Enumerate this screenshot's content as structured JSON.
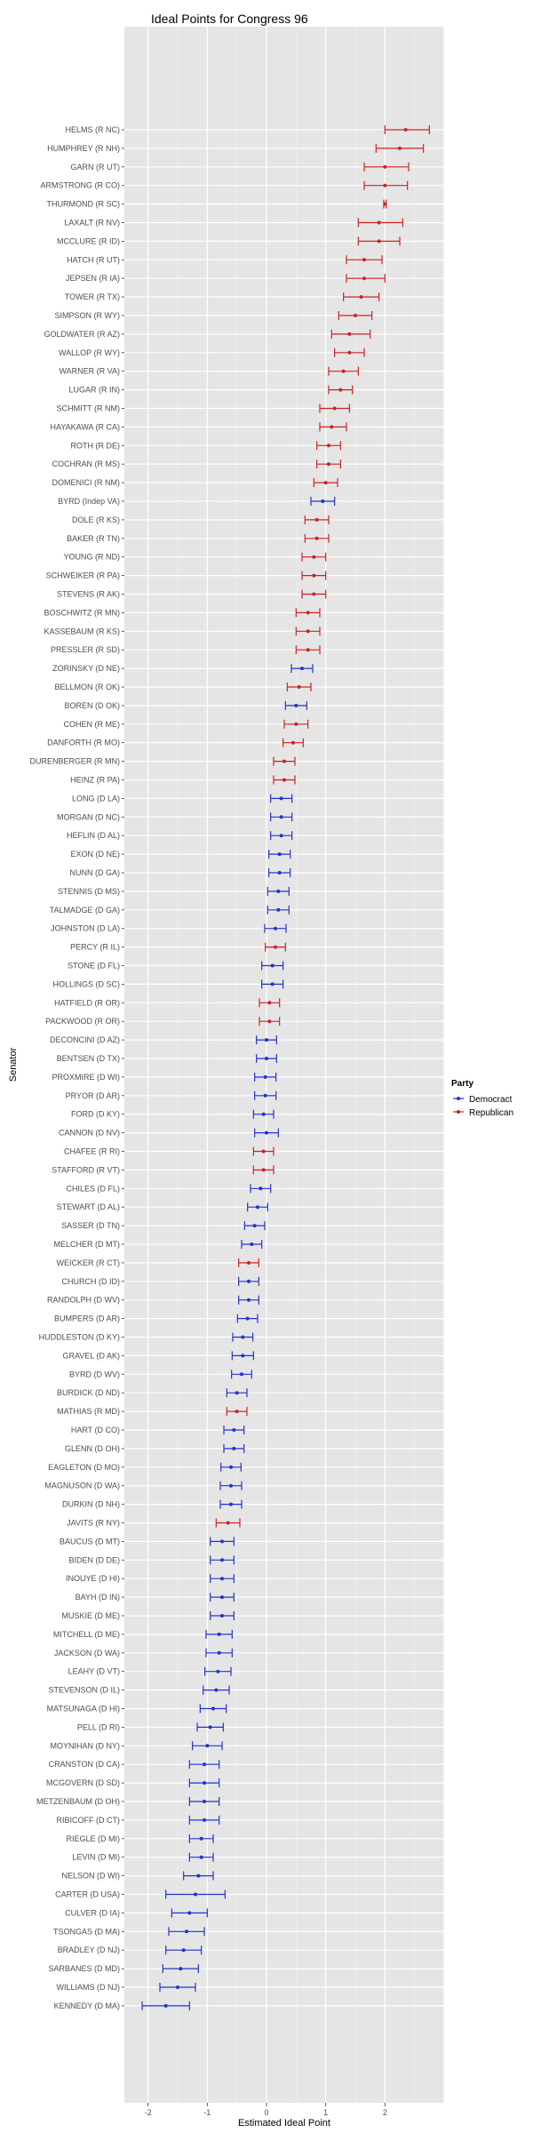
{
  "chart_data": {
    "type": "scatter",
    "title": "Ideal Points for Congress 96",
    "xlabel": "Estimated Ideal Point",
    "ylabel": "Senator",
    "xlim": [
      -2.4,
      3.0
    ],
    "x_ticks": [
      -2,
      -1,
      0,
      1,
      2
    ],
    "x_tick_labels": [
      "-2",
      "-1",
      "0",
      "1",
      "2"
    ],
    "grid": true,
    "legend": {
      "title": "Party",
      "position": "right",
      "entries": [
        {
          "label": "Democract",
          "color": "#2233cc"
        },
        {
          "label": "Republican",
          "color": "#cc2222"
        }
      ]
    },
    "colors": {
      "D": "#2233cc",
      "R": "#cc2222",
      "Indep": "#2233cc",
      "panel": "#e5e5e5",
      "grid": "#ffffff"
    },
    "points": [
      {
        "label": "HELMS (R NC)",
        "party": "R",
        "value": 2.35,
        "low": 2.0,
        "high": 2.75
      },
      {
        "label": "HUMPHREY (R NH)",
        "party": "R",
        "value": 2.25,
        "low": 1.85,
        "high": 2.65
      },
      {
        "label": "GARN (R UT)",
        "party": "R",
        "value": 2.0,
        "low": 1.65,
        "high": 2.4
      },
      {
        "label": "ARMSTRONG (R CO)",
        "party": "R",
        "value": 2.0,
        "low": 1.65,
        "high": 2.38
      },
      {
        "label": "THURMOND (R SC)",
        "party": "R",
        "value": 2.0,
        "low": 1.98,
        "high": 2.02
      },
      {
        "label": "LAXALT (R NV)",
        "party": "R",
        "value": 1.9,
        "low": 1.55,
        "high": 2.3
      },
      {
        "label": "MCCLURE (R ID)",
        "party": "R",
        "value": 1.9,
        "low": 1.55,
        "high": 2.25
      },
      {
        "label": "HATCH (R UT)",
        "party": "R",
        "value": 1.65,
        "low": 1.35,
        "high": 1.95
      },
      {
        "label": "JEPSEN (R IA)",
        "party": "R",
        "value": 1.65,
        "low": 1.35,
        "high": 2.0
      },
      {
        "label": "TOWER (R TX)",
        "party": "R",
        "value": 1.6,
        "low": 1.3,
        "high": 1.9
      },
      {
        "label": "SIMPSON (R WY)",
        "party": "R",
        "value": 1.5,
        "low": 1.22,
        "high": 1.78
      },
      {
        "label": "GOLDWATER (R AZ)",
        "party": "R",
        "value": 1.4,
        "low": 1.1,
        "high": 1.75
      },
      {
        "label": "WALLOP (R WY)",
        "party": "R",
        "value": 1.4,
        "low": 1.15,
        "high": 1.65
      },
      {
        "label": "WARNER (R VA)",
        "party": "R",
        "value": 1.3,
        "low": 1.05,
        "high": 1.55
      },
      {
        "label": "LUGAR (R IN)",
        "party": "R",
        "value": 1.25,
        "low": 1.05,
        "high": 1.45
      },
      {
        "label": "SCHMITT (R NM)",
        "party": "R",
        "value": 1.15,
        "low": 0.9,
        "high": 1.4
      },
      {
        "label": "HAYAKAWA (R CA)",
        "party": "R",
        "value": 1.1,
        "low": 0.9,
        "high": 1.35
      },
      {
        "label": "ROTH (R DE)",
        "party": "R",
        "value": 1.05,
        "low": 0.85,
        "high": 1.25
      },
      {
        "label": "COCHRAN (R MS)",
        "party": "R",
        "value": 1.05,
        "low": 0.85,
        "high": 1.25
      },
      {
        "label": "DOMENICI (R NM)",
        "party": "R",
        "value": 1.0,
        "low": 0.8,
        "high": 1.2
      },
      {
        "label": "BYRD (Indep VA)",
        "party": "Indep",
        "value": 0.95,
        "low": 0.75,
        "high": 1.15
      },
      {
        "label": "DOLE (R KS)",
        "party": "R",
        "value": 0.85,
        "low": 0.65,
        "high": 1.05
      },
      {
        "label": "BAKER (R TN)",
        "party": "R",
        "value": 0.85,
        "low": 0.65,
        "high": 1.05
      },
      {
        "label": "YOUNG (R ND)",
        "party": "R",
        "value": 0.8,
        "low": 0.6,
        "high": 1.0
      },
      {
        "label": "SCHWEIKER (R PA)",
        "party": "R",
        "value": 0.8,
        "low": 0.6,
        "high": 1.0
      },
      {
        "label": "STEVENS (R AK)",
        "party": "R",
        "value": 0.8,
        "low": 0.6,
        "high": 1.0
      },
      {
        "label": "BOSCHWITZ (R MN)",
        "party": "R",
        "value": 0.7,
        "low": 0.5,
        "high": 0.9
      },
      {
        "label": "KASSEBAUM (R KS)",
        "party": "R",
        "value": 0.7,
        "low": 0.5,
        "high": 0.9
      },
      {
        "label": "PRESSLER (R SD)",
        "party": "R",
        "value": 0.7,
        "low": 0.5,
        "high": 0.9
      },
      {
        "label": "ZORINSKY (D NE)",
        "party": "D",
        "value": 0.6,
        "low": 0.42,
        "high": 0.78
      },
      {
        "label": "BELLMON (R OK)",
        "party": "R",
        "value": 0.55,
        "low": 0.35,
        "high": 0.75
      },
      {
        "label": "BOREN (D OK)",
        "party": "D",
        "value": 0.5,
        "low": 0.32,
        "high": 0.68
      },
      {
        "label": "COHEN (R ME)",
        "party": "R",
        "value": 0.5,
        "low": 0.3,
        "high": 0.7
      },
      {
        "label": "DANFORTH (R MO)",
        "party": "R",
        "value": 0.45,
        "low": 0.28,
        "high": 0.62
      },
      {
        "label": "DURENBERGER (R MN)",
        "party": "R",
        "value": 0.3,
        "low": 0.12,
        "high": 0.48
      },
      {
        "label": "HEINZ (R PA)",
        "party": "R",
        "value": 0.3,
        "low": 0.12,
        "high": 0.48
      },
      {
        "label": "LONG (D LA)",
        "party": "D",
        "value": 0.25,
        "low": 0.07,
        "high": 0.43
      },
      {
        "label": "MORGAN (D NC)",
        "party": "D",
        "value": 0.25,
        "low": 0.07,
        "high": 0.43
      },
      {
        "label": "HEFLIN (D AL)",
        "party": "D",
        "value": 0.25,
        "low": 0.07,
        "high": 0.43
      },
      {
        "label": "EXON (D NE)",
        "party": "D",
        "value": 0.22,
        "low": 0.04,
        "high": 0.4
      },
      {
        "label": "NUNN (D GA)",
        "party": "D",
        "value": 0.22,
        "low": 0.04,
        "high": 0.4
      },
      {
        "label": "STENNIS (D MS)",
        "party": "D",
        "value": 0.2,
        "low": 0.02,
        "high": 0.38
      },
      {
        "label": "TALMADGE (D GA)",
        "party": "D",
        "value": 0.2,
        "low": 0.02,
        "high": 0.38
      },
      {
        "label": "JOHNSTON (D LA)",
        "party": "D",
        "value": 0.15,
        "low": -0.03,
        "high": 0.33
      },
      {
        "label": "PERCY (R IL)",
        "party": "R",
        "value": 0.15,
        "low": -0.02,
        "high": 0.32
      },
      {
        "label": "STONE (D FL)",
        "party": "D",
        "value": 0.1,
        "low": -0.08,
        "high": 0.28
      },
      {
        "label": "HOLLINGS (D SC)",
        "party": "D",
        "value": 0.1,
        "low": -0.08,
        "high": 0.28
      },
      {
        "label": "HATFIELD (R OR)",
        "party": "R",
        "value": 0.05,
        "low": -0.12,
        "high": 0.22
      },
      {
        "label": "PACKWOOD (R OR)",
        "party": "R",
        "value": 0.05,
        "low": -0.12,
        "high": 0.22
      },
      {
        "label": "DECONCINI (D AZ)",
        "party": "D",
        "value": 0.0,
        "low": -0.17,
        "high": 0.17
      },
      {
        "label": "BENTSEN (D TX)",
        "party": "D",
        "value": 0.0,
        "low": -0.17,
        "high": 0.17
      },
      {
        "label": "PROXMIRE (D WI)",
        "party": "D",
        "value": -0.02,
        "low": -0.2,
        "high": 0.16
      },
      {
        "label": "PRYOR (D AR)",
        "party": "D",
        "value": -0.02,
        "low": -0.2,
        "high": 0.16
      },
      {
        "label": "FORD (D KY)",
        "party": "D",
        "value": -0.05,
        "low": -0.22,
        "high": 0.12
      },
      {
        "label": "CANNON (D NV)",
        "party": "D",
        "value": 0.0,
        "low": -0.2,
        "high": 0.2
      },
      {
        "label": "CHAFEE (R RI)",
        "party": "R",
        "value": -0.05,
        "low": -0.22,
        "high": 0.12
      },
      {
        "label": "STAFFORD (R VT)",
        "party": "R",
        "value": -0.05,
        "low": -0.22,
        "high": 0.12
      },
      {
        "label": "CHILES (D FL)",
        "party": "D",
        "value": -0.1,
        "low": -0.27,
        "high": 0.07
      },
      {
        "label": "STEWART (D AL)",
        "party": "D",
        "value": -0.15,
        "low": -0.32,
        "high": 0.02
      },
      {
        "label": "SASSER (D TN)",
        "party": "D",
        "value": -0.2,
        "low": -0.37,
        "high": -0.03
      },
      {
        "label": "MELCHER (D MT)",
        "party": "D",
        "value": -0.25,
        "low": -0.42,
        "high": -0.08
      },
      {
        "label": "WEICKER (R CT)",
        "party": "R",
        "value": -0.3,
        "low": -0.47,
        "high": -0.13
      },
      {
        "label": "CHURCH (D ID)",
        "party": "D",
        "value": -0.3,
        "low": -0.47,
        "high": -0.13
      },
      {
        "label": "RANDOLPH (D WV)",
        "party": "D",
        "value": -0.3,
        "low": -0.47,
        "high": -0.13
      },
      {
        "label": "BUMPERS (D AR)",
        "party": "D",
        "value": -0.32,
        "low": -0.49,
        "high": -0.15
      },
      {
        "label": "HUDDLESTON (D KY)",
        "party": "D",
        "value": -0.4,
        "low": -0.57,
        "high": -0.23
      },
      {
        "label": "GRAVEL (D AK)",
        "party": "D",
        "value": -0.4,
        "low": -0.58,
        "high": -0.22
      },
      {
        "label": "BYRD (D WV)",
        "party": "D",
        "value": -0.42,
        "low": -0.59,
        "high": -0.25
      },
      {
        "label": "BURDICK (D ND)",
        "party": "D",
        "value": -0.5,
        "low": -0.67,
        "high": -0.33
      },
      {
        "label": "MATHIAS (R MD)",
        "party": "R",
        "value": -0.5,
        "low": -0.67,
        "high": -0.33
      },
      {
        "label": "HART (D CO)",
        "party": "D",
        "value": -0.55,
        "low": -0.72,
        "high": -0.38
      },
      {
        "label": "GLENN (D OH)",
        "party": "D",
        "value": -0.55,
        "low": -0.72,
        "high": -0.38
      },
      {
        "label": "EAGLETON (D MO)",
        "party": "D",
        "value": -0.6,
        "low": -0.77,
        "high": -0.43
      },
      {
        "label": "MAGNUSON (D WA)",
        "party": "D",
        "value": -0.6,
        "low": -0.78,
        "high": -0.42
      },
      {
        "label": "DURKIN (D NH)",
        "party": "D",
        "value": -0.6,
        "low": -0.78,
        "high": -0.42
      },
      {
        "label": "JAVITS (R NY)",
        "party": "R",
        "value": -0.65,
        "low": -0.85,
        "high": -0.45
      },
      {
        "label": "BAUCUS (D MT)",
        "party": "D",
        "value": -0.75,
        "low": -0.95,
        "high": -0.55
      },
      {
        "label": "BIDEN (D DE)",
        "party": "D",
        "value": -0.75,
        "low": -0.95,
        "high": -0.55
      },
      {
        "label": "INOUYE (D HI)",
        "party": "D",
        "value": -0.75,
        "low": -0.95,
        "high": -0.55
      },
      {
        "label": "BAYH (D IN)",
        "party": "D",
        "value": -0.75,
        "low": -0.95,
        "high": -0.55
      },
      {
        "label": "MUSKIE (D ME)",
        "party": "D",
        "value": -0.75,
        "low": -0.95,
        "high": -0.55
      },
      {
        "label": "MITCHELL (D ME)",
        "party": "D",
        "value": -0.8,
        "low": -1.02,
        "high": -0.58
      },
      {
        "label": "JACKSON (D WA)",
        "party": "D",
        "value": -0.8,
        "low": -1.02,
        "high": -0.58
      },
      {
        "label": "LEAHY (D VT)",
        "party": "D",
        "value": -0.82,
        "low": -1.04,
        "high": -0.6
      },
      {
        "label": "STEVENSON (D IL)",
        "party": "D",
        "value": -0.85,
        "low": -1.07,
        "high": -0.63
      },
      {
        "label": "MATSUNAGA (D HI)",
        "party": "D",
        "value": -0.9,
        "low": -1.12,
        "high": -0.68
      },
      {
        "label": "PELL (D RI)",
        "party": "D",
        "value": -0.95,
        "low": -1.17,
        "high": -0.73
      },
      {
        "label": "MOYNIHAN (D NY)",
        "party": "D",
        "value": -1.0,
        "low": -1.25,
        "high": -0.75
      },
      {
        "label": "CRANSTON (D CA)",
        "party": "D",
        "value": -1.05,
        "low": -1.3,
        "high": -0.8
      },
      {
        "label": "MCGOVERN (D SD)",
        "party": "D",
        "value": -1.05,
        "low": -1.3,
        "high": -0.8
      },
      {
        "label": "METZENBAUM (D OH)",
        "party": "D",
        "value": -1.05,
        "low": -1.3,
        "high": -0.8
      },
      {
        "label": "RIBICOFF (D CT)",
        "party": "D",
        "value": -1.05,
        "low": -1.3,
        "high": -0.8
      },
      {
        "label": "RIEGLE (D MI)",
        "party": "D",
        "value": -1.1,
        "low": -1.3,
        "high": -0.9
      },
      {
        "label": "LEVIN (D MI)",
        "party": "D",
        "value": -1.1,
        "low": -1.3,
        "high": -0.9
      },
      {
        "label": "NELSON (D WI)",
        "party": "D",
        "value": -1.15,
        "low": -1.4,
        "high": -0.9
      },
      {
        "label": "CARTER (D USA)",
        "party": "D",
        "value": -1.2,
        "low": -1.7,
        "high": -0.7
      },
      {
        "label": "CULVER (D IA)",
        "party": "D",
        "value": -1.3,
        "low": -1.6,
        "high": -1.0
      },
      {
        "label": "TSONGAS (D MA)",
        "party": "D",
        "value": -1.35,
        "low": -1.65,
        "high": -1.05
      },
      {
        "label": "BRADLEY (D NJ)",
        "party": "D",
        "value": -1.4,
        "low": -1.7,
        "high": -1.1
      },
      {
        "label": "SARBANES (D MD)",
        "party": "D",
        "value": -1.45,
        "low": -1.75,
        "high": -1.15
      },
      {
        "label": "WILLIAMS (D NJ)",
        "party": "D",
        "value": -1.5,
        "low": -1.8,
        "high": -1.2
      },
      {
        "label": "KENNEDY (D MA)",
        "party": "D",
        "value": -1.7,
        "low": -2.1,
        "high": -1.3
      }
    ]
  }
}
